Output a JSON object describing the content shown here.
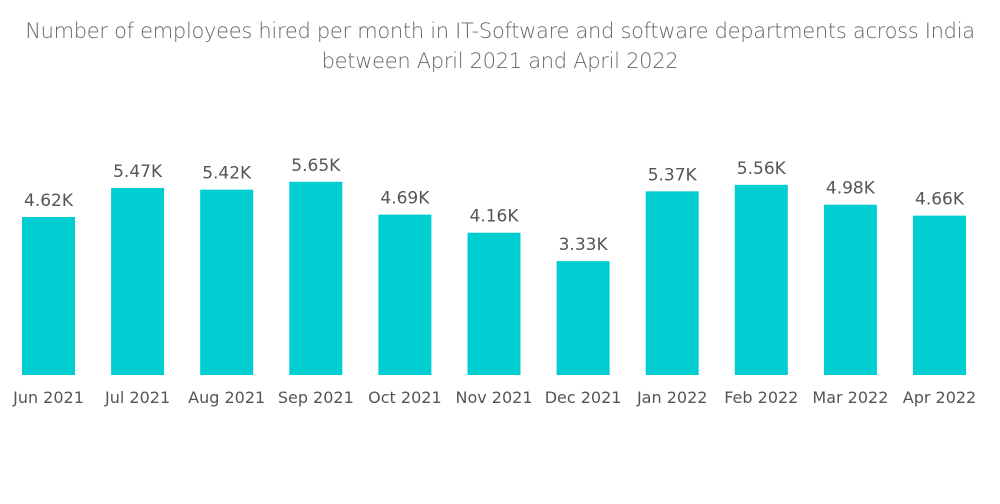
{
  "chart_data": {
    "type": "bar",
    "title_lines": [
      "Number of employees hired per month in IT-Software and software departments across India",
      "between April 2021 and April 2022"
    ],
    "title": "Number of employees hired per month in IT-Software and software departments across India between April 2021 and April 2022",
    "xlabel": "",
    "ylabel": "",
    "categories": [
      "Jun 2021",
      "Jul 2021",
      "Aug 2021",
      "Sep 2021",
      "Oct 2021",
      "Nov 2021",
      "Dec 2021",
      "Jan 2022",
      "Feb 2022",
      "Mar 2022",
      "Apr 2022"
    ],
    "values": [
      4.62,
      5.47,
      5.42,
      5.65,
      4.69,
      4.16,
      3.33,
      5.37,
      5.56,
      4.98,
      4.66
    ],
    "labels": [
      "4.62K",
      "5.47K",
      "5.42K",
      "5.65K",
      "4.69K",
      "4.16K",
      "3.33K",
      "5.37K",
      "5.56K",
      "4.98K",
      "4.66K"
    ],
    "unit": "thousands",
    "ylim": [
      0,
      6
    ],
    "grid": false,
    "legend": "none",
    "bar_color": "#00CED1"
  }
}
